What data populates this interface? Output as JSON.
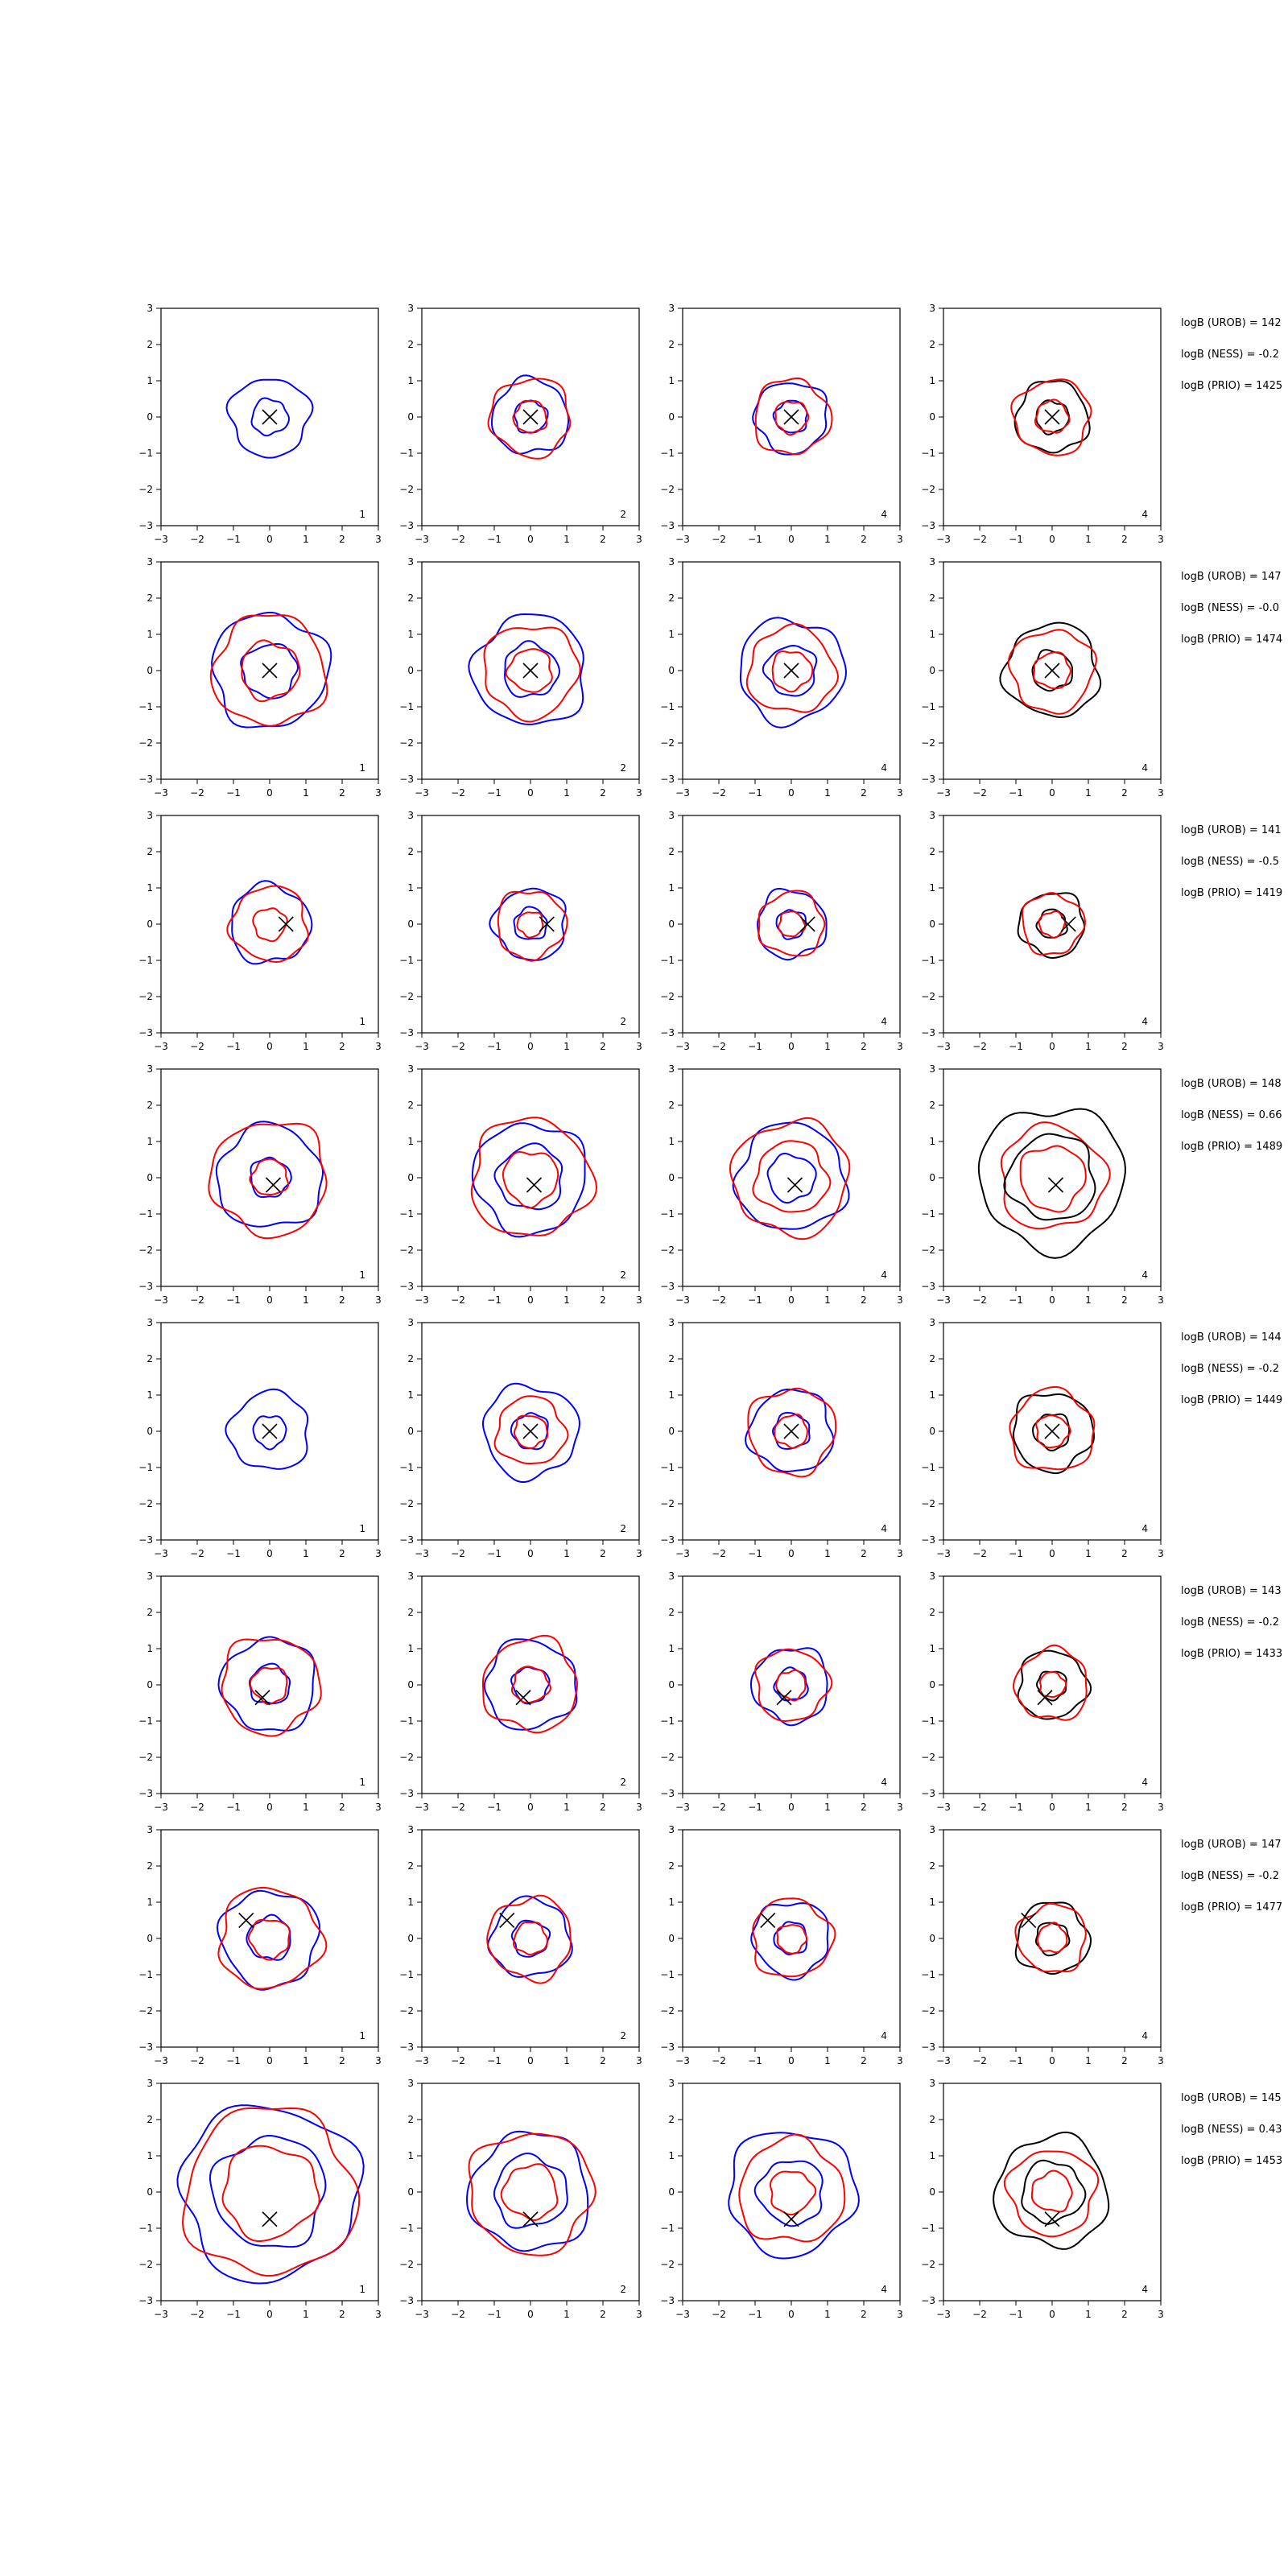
{
  "chart_data": {
    "type": "contour-grid",
    "xlim": [
      -3,
      3
    ],
    "ylim": [
      -3,
      3
    ],
    "ticks": [
      -3,
      -2,
      -1,
      0,
      1,
      2,
      3
    ],
    "colors": {
      "blue": "#0000ff",
      "red": "#ff0000",
      "black": "#000000"
    },
    "rows": [
      {
        "marker": [
          0,
          0
        ],
        "annotations": [
          "logB (UROB) = 142",
          "logB (NESS) = -0.2",
          "logB (PRIO) = 1425"
        ],
        "panels": [
          {
            "label": "1",
            "contours": [
              {
                "color": "blue",
                "r": 1.1
              },
              {
                "color": "blue",
                "r": 0.5
              }
            ]
          },
          {
            "label": "2",
            "contours": [
              {
                "color": "blue",
                "r": 1.05
              },
              {
                "color": "red",
                "r": 1.1
              },
              {
                "color": "blue",
                "r": 0.45
              },
              {
                "color": "red",
                "r": 0.45
              }
            ]
          },
          {
            "label": "4",
            "contours": [
              {
                "color": "blue",
                "r": 1.0
              },
              {
                "color": "red",
                "r": 1.05
              },
              {
                "color": "blue",
                "r": 0.45
              },
              {
                "color": "red",
                "r": 0.45
              }
            ]
          },
          {
            "label": "4",
            "contours": [
              {
                "color": "black",
                "r": 1.0
              },
              {
                "color": "red",
                "r": 1.05
              },
              {
                "color": "black",
                "r": 0.45
              },
              {
                "color": "red",
                "r": 0.45
              }
            ]
          }
        ]
      },
      {
        "marker": [
          0,
          0
        ],
        "annotations": [
          "logB (UROB) = 147",
          "logB (NESS) = -0.0",
          "logB (PRIO) = 1474"
        ],
        "panels": [
          {
            "label": "1",
            "contours": [
              {
                "color": "blue",
                "r": 1.6
              },
              {
                "color": "red",
                "r": 1.55
              },
              {
                "color": "blue",
                "r": 0.75
              },
              {
                "color": "red",
                "r": 0.8
              }
            ]
          },
          {
            "label": "2",
            "contours": [
              {
                "color": "blue",
                "r": 1.55
              },
              {
                "color": "red",
                "r": 1.3
              },
              {
                "color": "blue",
                "r": 0.75
              },
              {
                "color": "red",
                "r": 0.6
              }
            ]
          },
          {
            "label": "4",
            "contours": [
              {
                "color": "blue",
                "r": 1.45
              },
              {
                "color": "red",
                "r": 1.2
              },
              {
                "color": "blue",
                "r": 0.7
              },
              {
                "color": "red",
                "r": 0.55
              }
            ]
          },
          {
            "label": "4",
            "contours": [
              {
                "color": "black",
                "r": 1.3
              },
              {
                "color": "red",
                "r": 1.15
              },
              {
                "color": "black",
                "r": 0.55
              },
              {
                "color": "red",
                "r": 0.5
              }
            ]
          }
        ]
      },
      {
        "marker": [
          0.45,
          0
        ],
        "annotations": [
          "logB (UROB) = 141",
          "logB (NESS) = -0.5",
          "logB (PRIO) = 1419"
        ],
        "panels": [
          {
            "label": "1",
            "contours": [
              {
                "color": "blue",
                "r": 1.1
              },
              {
                "color": "red",
                "r": 1.05
              },
              {
                "color": "red",
                "r": 0.45
              }
            ]
          },
          {
            "label": "2",
            "contours": [
              {
                "color": "blue",
                "r": 1.0
              },
              {
                "color": "red",
                "r": 0.95
              },
              {
                "color": "blue",
                "r": 0.45
              },
              {
                "color": "red",
                "r": 0.35
              }
            ]
          },
          {
            "label": "4",
            "contours": [
              {
                "color": "blue",
                "r": 0.95
              },
              {
                "color": "red",
                "r": 0.9
              },
              {
                "color": "blue",
                "r": 0.4
              },
              {
                "color": "red",
                "r": 0.35
              }
            ]
          },
          {
            "label": "4",
            "contours": [
              {
                "color": "black",
                "r": 0.9
              },
              {
                "color": "red",
                "r": 0.85
              },
              {
                "color": "black",
                "r": 0.4
              },
              {
                "color": "red",
                "r": 0.35
              }
            ]
          }
        ]
      },
      {
        "marker": [
          0.1,
          -0.2
        ],
        "annotations": [
          "logB (UROB) = 148",
          "logB (NESS) = 0.66",
          "logB (PRIO) = 1489"
        ],
        "panels": [
          {
            "label": "1",
            "contours": [
              {
                "color": "blue",
                "r": 1.45
              },
              {
                "color": "red",
                "r": 1.6
              },
              {
                "color": "blue",
                "r": 0.55
              },
              {
                "color": "red",
                "r": 0.5
              }
            ]
          },
          {
            "label": "2",
            "contours": [
              {
                "color": "blue",
                "r": 1.55
              },
              {
                "color": "red",
                "r": 1.65
              },
              {
                "color": "blue",
                "r": 0.9
              },
              {
                "color": "red",
                "r": 0.75
              }
            ]
          },
          {
            "label": "4",
            "contours": [
              {
                "color": "blue",
                "r": 1.5
              },
              {
                "color": "red",
                "r": 1.6
              },
              {
                "color": "blue",
                "r": 0.65
              },
              {
                "color": "red",
                "r": 1.0
              }
            ]
          },
          {
            "label": "4",
            "contours": [
              {
                "color": "black",
                "r": 2.0
              },
              {
                "color": "red",
                "r": 1.45
              },
              {
                "color": "black",
                "r": 1.2
              },
              {
                "color": "red",
                "r": 0.9
              }
            ]
          }
        ]
      },
      {
        "marker": [
          0,
          0
        ],
        "annotations": [
          "logB (UROB) = 144",
          "logB (NESS) = -0.2",
          "logB (PRIO) = 1449"
        ],
        "panels": [
          {
            "label": "1",
            "contours": [
              {
                "color": "blue",
                "r": 1.1
              },
              {
                "color": "blue",
                "r": 0.45
              }
            ]
          },
          {
            "label": "2",
            "contours": [
              {
                "color": "blue",
                "r": 1.3
              },
              {
                "color": "red",
                "r": 0.95
              },
              {
                "color": "blue",
                "r": 0.5
              },
              {
                "color": "red",
                "r": 0.45
              }
            ]
          },
          {
            "label": "4",
            "contours": [
              {
                "color": "blue",
                "r": 1.15
              },
              {
                "color": "red",
                "r": 1.2
              },
              {
                "color": "blue",
                "r": 0.5
              },
              {
                "color": "red",
                "r": 0.45
              }
            ]
          },
          {
            "label": "4",
            "contours": [
              {
                "color": "black",
                "r": 1.1
              },
              {
                "color": "red",
                "r": 1.15
              },
              {
                "color": "black",
                "r": 0.5
              },
              {
                "color": "red",
                "r": 0.45
              }
            ]
          }
        ]
      },
      {
        "marker": [
          -0.2,
          -0.35
        ],
        "annotations": [
          "logB (UROB) = 143",
          "logB (NESS) = -0.2",
          "logB (PRIO) = 1433"
        ],
        "panels": [
          {
            "label": "1",
            "contours": [
              {
                "color": "blue",
                "r": 1.3
              },
              {
                "color": "red",
                "r": 1.35
              },
              {
                "color": "blue",
                "r": 0.55
              },
              {
                "color": "red",
                "r": 0.5
              }
            ]
          },
          {
            "label": "2",
            "contours": [
              {
                "color": "blue",
                "r": 1.25
              },
              {
                "color": "red",
                "r": 1.3
              },
              {
                "color": "blue",
                "r": 0.5
              },
              {
                "color": "red",
                "r": 0.5
              }
            ]
          },
          {
            "label": "4",
            "contours": [
              {
                "color": "blue",
                "r": 1.05
              },
              {
                "color": "red",
                "r": 1.0
              },
              {
                "color": "blue",
                "r": 0.45
              },
              {
                "color": "red",
                "r": 0.4
              }
            ]
          },
          {
            "label": "4",
            "contours": [
              {
                "color": "black",
                "r": 0.95
              },
              {
                "color": "red",
                "r": 1.0
              },
              {
                "color": "black",
                "r": 0.4
              },
              {
                "color": "red",
                "r": 0.35
              }
            ]
          }
        ]
      },
      {
        "marker": [
          -0.65,
          0.5
        ],
        "annotations": [
          "logB (UROB) = 147",
          "logB (NESS) = -0.2",
          "logB (PRIO) = 1477"
        ],
        "panels": [
          {
            "label": "1",
            "contours": [
              {
                "color": "blue",
                "r": 1.35
              },
              {
                "color": "red",
                "r": 1.4
              },
              {
                "color": "blue",
                "r": 0.6
              },
              {
                "color": "red",
                "r": 0.55
              }
            ]
          },
          {
            "label": "2",
            "contours": [
              {
                "color": "blue",
                "r": 1.1
              },
              {
                "color": "red",
                "r": 1.15
              },
              {
                "color": "blue",
                "r": 0.5
              },
              {
                "color": "red",
                "r": 0.45
              }
            ]
          },
          {
            "label": "4",
            "contours": [
              {
                "color": "blue",
                "r": 1.05
              },
              {
                "color": "red",
                "r": 1.1
              },
              {
                "color": "blue",
                "r": 0.45
              },
              {
                "color": "red",
                "r": 0.4
              }
            ]
          },
          {
            "label": "4",
            "contours": [
              {
                "color": "black",
                "r": 1.0
              },
              {
                "color": "red",
                "r": 0.95
              },
              {
                "color": "black",
                "r": 0.45
              },
              {
                "color": "red",
                "r": 0.4
              }
            ]
          }
        ]
      },
      {
        "marker": [
          0,
          -0.75
        ],
        "annotations": [
          "logB (UROB) = 145",
          "logB (NESS) = 0.43",
          "logB (PRIO) = 1453"
        ],
        "panels": [
          {
            "label": "1",
            "contours": [
              {
                "color": "blue",
                "r": 2.45
              },
              {
                "color": "red",
                "r": 2.35
              },
              {
                "color": "blue",
                "r": 1.55
              },
              {
                "color": "red",
                "r": 1.3
              }
            ]
          },
          {
            "label": "2",
            "contours": [
              {
                "color": "blue",
                "r": 1.65
              },
              {
                "color": "red",
                "r": 1.7
              },
              {
                "color": "blue",
                "r": 1.0
              },
              {
                "color": "red",
                "r": 0.75
              }
            ]
          },
          {
            "label": "4",
            "contours": [
              {
                "color": "blue",
                "r": 1.75
              },
              {
                "color": "red",
                "r": 1.45
              },
              {
                "color": "blue",
                "r": 0.9
              },
              {
                "color": "red",
                "r": 0.6
              }
            ]
          },
          {
            "label": "4",
            "contours": [
              {
                "color": "black",
                "r": 1.55
              },
              {
                "color": "red",
                "r": 1.2
              },
              {
                "color": "black",
                "r": 0.85
              },
              {
                "color": "red",
                "r": 0.55
              }
            ]
          }
        ]
      }
    ]
  }
}
